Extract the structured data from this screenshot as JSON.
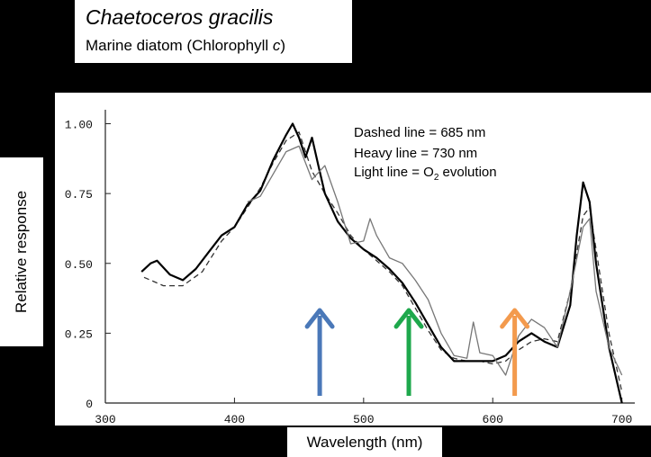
{
  "header": {
    "title": "Chaetoceros gracilis",
    "subtitle_prefix": "Marine diatom (Chlorophyll ",
    "subtitle_italic": "c",
    "subtitle_suffix": ")"
  },
  "chart_data": {
    "type": "line",
    "title": "Chaetoceros gracilis",
    "subtitle": "Marine diatom (Chlorophyll c)",
    "xlabel": "Wavelength (nm)",
    "ylabel": "Relative response",
    "xlim": [
      300,
      710
    ],
    "ylim": [
      0,
      1.05
    ],
    "x_ticks": [
      "300",
      "400",
      "500",
      "600",
      "700"
    ],
    "y_ticks": [
      "0",
      "0.25",
      "0.50",
      "0.75",
      "1.00"
    ],
    "grid": false,
    "legend": [
      "Dashed line = 685 nm",
      "Heavy line =  730 nm",
      "Light line = O",
      "2",
      " evolution"
    ],
    "series": [
      {
        "name": "Dashed line = 685 nm",
        "style": "dashed",
        "color": "#333333",
        "points": [
          [
            330,
            0.45
          ],
          [
            345,
            0.42
          ],
          [
            360,
            0.42
          ],
          [
            375,
            0.47
          ],
          [
            390,
            0.58
          ],
          [
            400,
            0.63
          ],
          [
            410,
            0.7
          ],
          [
            420,
            0.77
          ],
          [
            430,
            0.86
          ],
          [
            440,
            0.94
          ],
          [
            450,
            0.97
          ],
          [
            460,
            0.83
          ],
          [
            470,
            0.75
          ],
          [
            480,
            0.68
          ],
          [
            490,
            0.6
          ],
          [
            500,
            0.55
          ],
          [
            510,
            0.51
          ],
          [
            520,
            0.47
          ],
          [
            530,
            0.42
          ],
          [
            540,
            0.34
          ],
          [
            550,
            0.26
          ],
          [
            560,
            0.19
          ],
          [
            570,
            0.16
          ],
          [
            580,
            0.15
          ],
          [
            590,
            0.15
          ],
          [
            600,
            0.14
          ],
          [
            610,
            0.15
          ],
          [
            620,
            0.19
          ],
          [
            630,
            0.22
          ],
          [
            640,
            0.23
          ],
          [
            650,
            0.22
          ],
          [
            660,
            0.4
          ],
          [
            670,
            0.67
          ],
          [
            675,
            0.7
          ],
          [
            680,
            0.55
          ],
          [
            690,
            0.25
          ],
          [
            700,
            0.04
          ]
        ]
      },
      {
        "name": "Heavy line =  730 nm",
        "style": "heavy",
        "color": "#000000",
        "points": [
          [
            328,
            0.47
          ],
          [
            335,
            0.5
          ],
          [
            340,
            0.51
          ],
          [
            350,
            0.46
          ],
          [
            360,
            0.44
          ],
          [
            370,
            0.48
          ],
          [
            380,
            0.54
          ],
          [
            390,
            0.6
          ],
          [
            400,
            0.63
          ],
          [
            410,
            0.71
          ],
          [
            420,
            0.76
          ],
          [
            430,
            0.87
          ],
          [
            440,
            0.96
          ],
          [
            445,
            1.0
          ],
          [
            450,
            0.95
          ],
          [
            455,
            0.88
          ],
          [
            460,
            0.95
          ],
          [
            465,
            0.85
          ],
          [
            470,
            0.75
          ],
          [
            480,
            0.65
          ],
          [
            490,
            0.59
          ],
          [
            500,
            0.55
          ],
          [
            510,
            0.52
          ],
          [
            520,
            0.48
          ],
          [
            530,
            0.43
          ],
          [
            540,
            0.36
          ],
          [
            550,
            0.28
          ],
          [
            560,
            0.2
          ],
          [
            570,
            0.15
          ],
          [
            580,
            0.15
          ],
          [
            590,
            0.15
          ],
          [
            600,
            0.15
          ],
          [
            610,
            0.17
          ],
          [
            620,
            0.22
          ],
          [
            630,
            0.25
          ],
          [
            640,
            0.22
          ],
          [
            650,
            0.2
          ],
          [
            660,
            0.35
          ],
          [
            665,
            0.6
          ],
          [
            670,
            0.79
          ],
          [
            675,
            0.72
          ],
          [
            680,
            0.5
          ],
          [
            690,
            0.2
          ],
          [
            700,
            0.0
          ]
        ]
      },
      {
        "name": "Light line = O2 evolution",
        "style": "light",
        "color": "#777777",
        "points": [
          [
            410,
            0.72
          ],
          [
            420,
            0.74
          ],
          [
            430,
            0.82
          ],
          [
            440,
            0.9
          ],
          [
            450,
            0.92
          ],
          [
            460,
            0.8
          ],
          [
            470,
            0.85
          ],
          [
            480,
            0.72
          ],
          [
            490,
            0.57
          ],
          [
            500,
            0.58
          ],
          [
            505,
            0.66
          ],
          [
            510,
            0.6
          ],
          [
            520,
            0.52
          ],
          [
            530,
            0.5
          ],
          [
            540,
            0.44
          ],
          [
            550,
            0.37
          ],
          [
            560,
            0.25
          ],
          [
            570,
            0.17
          ],
          [
            580,
            0.16
          ],
          [
            585,
            0.29
          ],
          [
            590,
            0.18
          ],
          [
            600,
            0.17
          ],
          [
            610,
            0.1
          ],
          [
            620,
            0.24
          ],
          [
            630,
            0.3
          ],
          [
            640,
            0.27
          ],
          [
            650,
            0.2
          ],
          [
            660,
            0.4
          ],
          [
            670,
            0.63
          ],
          [
            675,
            0.66
          ],
          [
            680,
            0.4
          ],
          [
            690,
            0.2
          ],
          [
            700,
            0.1
          ]
        ]
      }
    ],
    "arrows": [
      {
        "x": 466,
        "color": "#4a78b8"
      },
      {
        "x": 535,
        "color": "#1ea84c"
      },
      {
        "x": 617,
        "color": "#f39a4d"
      }
    ]
  }
}
